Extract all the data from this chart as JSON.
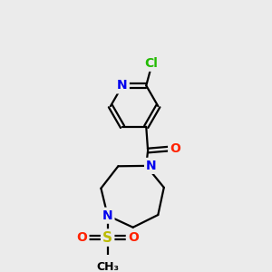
{
  "bg_color": "#ebebeb",
  "atom_colors": {
    "C": "#000000",
    "N": "#0000ee",
    "O": "#ff2200",
    "S": "#bbbb00",
    "Cl": "#22bb00",
    "H": "#000000"
  },
  "bond_color": "#000000",
  "bond_width": 1.6,
  "figsize": [
    3.0,
    3.0
  ],
  "dpi": 100
}
